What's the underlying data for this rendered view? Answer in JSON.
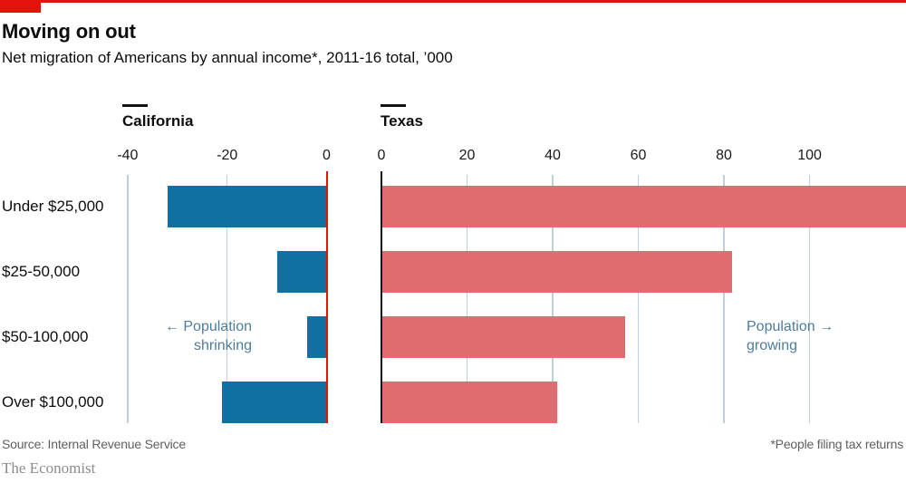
{
  "header": {
    "title": "Moving on out",
    "subtitle": "Net migration of Americans by annual income*, 2011-16 total, ’000"
  },
  "chart_data": {
    "type": "bar",
    "orientation": "horizontal",
    "title": "Moving on out",
    "subtitle": "Net migration of Americans by annual income*, 2011-16 total, ’000",
    "unit": "’000",
    "grid": true,
    "legend": "none",
    "categories": [
      "Under $25,000",
      "$25-50,000",
      "$50-100,000",
      "Over $100,000"
    ],
    "panels": [
      {
        "name": "California",
        "values": [
          -32,
          -10,
          -4,
          -21
        ],
        "axis_ticks": [
          -40,
          -20,
          0
        ],
        "xlim": [
          -41,
          0
        ],
        "annotation": {
          "line1": "← Population",
          "line2": "shrinking",
          "align": "right"
        }
      },
      {
        "name": "Texas",
        "values": [
          123,
          82,
          57,
          41
        ],
        "axis_ticks": [
          0,
          20,
          40,
          60,
          80,
          100
        ],
        "xlim": [
          0,
          122.5
        ],
        "annotation": {
          "line1": "Population →",
          "line2": "growing",
          "align": "left"
        }
      }
    ]
  },
  "colors": {
    "accent_red": "#e3120b",
    "california_bar": "#1170a2",
    "texas_bar": "#e06c70",
    "california_zero_line": "#e3120b",
    "texas_zero_line": "#121212",
    "gridline": "#bed1da",
    "annotation": "#4d7c9b",
    "text": "#0d0d0d"
  },
  "footer": {
    "source": "Source: Internal Revenue Service",
    "footnote": "*People filing tax returns",
    "brand": "The Economist"
  }
}
